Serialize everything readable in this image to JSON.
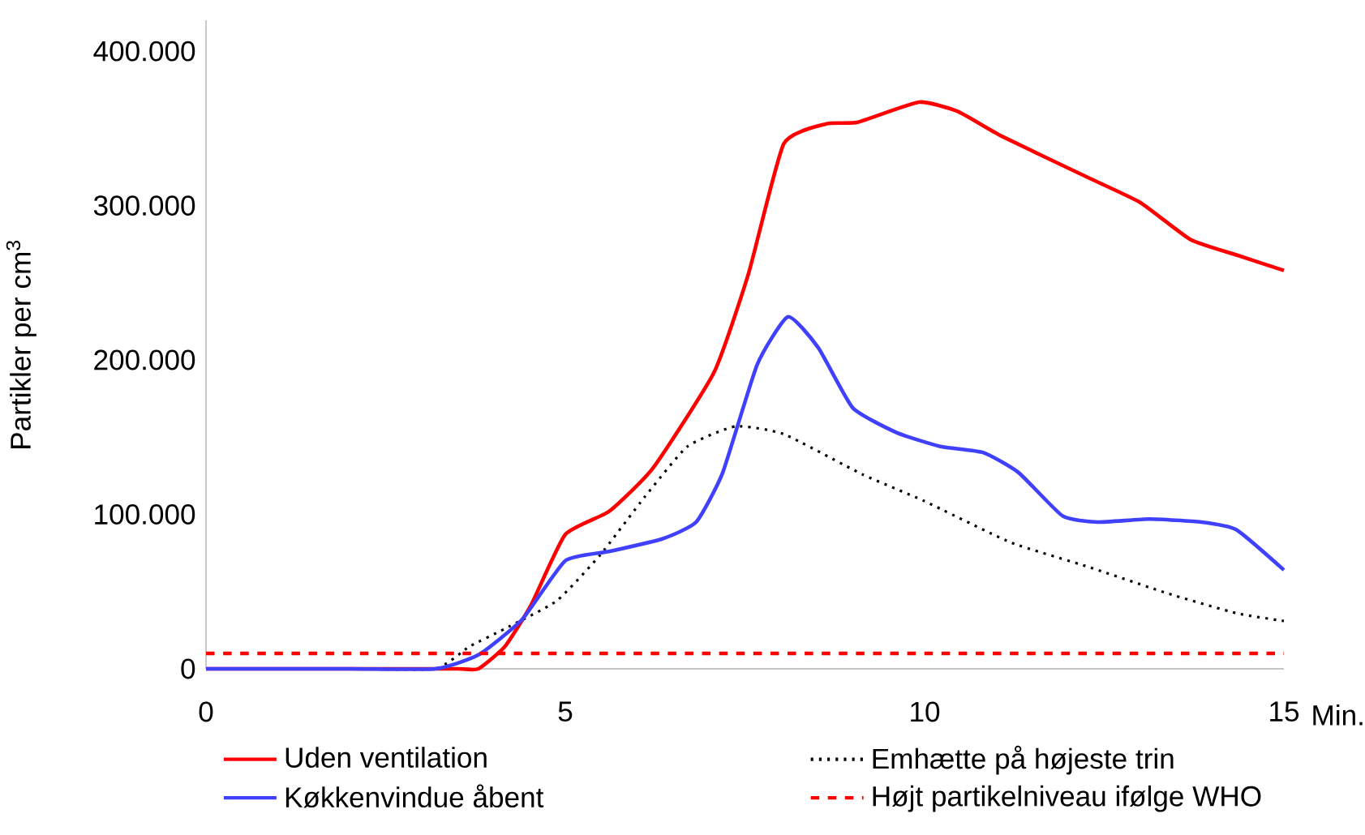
{
  "chart_data": {
    "type": "line",
    "xlabel": "Min.",
    "ylabel": "Partikler per cm$^{3}$",
    "xlim": [
      0,
      15
    ],
    "ylim": [
      0,
      420000
    ],
    "xticks": [
      0,
      5,
      10,
      15
    ],
    "yticks": [
      {
        "value": 0,
        "label": "0"
      },
      {
        "value": 100000,
        "label": "100.000"
      },
      {
        "value": 200000,
        "label": "200.000"
      },
      {
        "value": 300000,
        "label": "300.000"
      },
      {
        "value": 400000,
        "label": "400.000"
      }
    ],
    "grid": false,
    "legend": "bottom",
    "marker": "none",
    "series": [
      {
        "name": "Uden ventilation",
        "color": "#ff0000",
        "line_style": "solid",
        "x": [
          0,
          2,
          3.5,
          3.79,
          4.16,
          4.52,
          5.0,
          5.61,
          6.22,
          7.07,
          7.55,
          8.04,
          8.64,
          9.07,
          9.92,
          10.46,
          11.07,
          12.28,
          13.0,
          13.7,
          14.34,
          15
        ],
        "values": [
          0,
          0,
          0,
          0,
          14500,
          41000,
          87000,
          102000,
          130000,
          192000,
          256000,
          340000,
          353000,
          354000,
          367000,
          361000,
          345000,
          318000,
          302000,
          278000,
          268000,
          258000
        ]
      },
      {
        "name": "Emhætte på højeste trin",
        "color": "#000000",
        "line_style": "dotted",
        "x": [
          0,
          2,
          3.19,
          3.67,
          4.16,
          4.88,
          5.49,
          6.1,
          6.7,
          7.37,
          8.04,
          9.13,
          9.98,
          11.19,
          12.28,
          13.37,
          14.34,
          15
        ],
        "values": [
          0,
          0,
          0,
          14500,
          26000,
          44000,
          74000,
          111000,
          144000,
          157000,
          152000,
          126000,
          109000,
          82000,
          66000,
          49000,
          36000,
          31000
        ]
      },
      {
        "name": "Køkkenvindue åbent",
        "color": "#4040ff",
        "line_style": "solid",
        "x": [
          0,
          2,
          3.19,
          3.79,
          4.4,
          5.0,
          5.61,
          6.34,
          6.82,
          7.19,
          7.67,
          8.1,
          8.52,
          9.0,
          9.61,
          10.22,
          10.82,
          11.31,
          11.92,
          12.4,
          13.13,
          13.85,
          14.34,
          15
        ],
        "values": [
          0,
          0,
          0,
          9000,
          32000,
          70000,
          76000,
          84000,
          95000,
          127000,
          197000,
          228000,
          208000,
          169000,
          153000,
          144000,
          140000,
          127000,
          99000,
          95000,
          97000,
          95000,
          90000,
          64000
        ]
      }
    ],
    "ref_lines": [
      {
        "axis": "y",
        "value": 10000,
        "label": "Højt partikelniveau ifølge WHO",
        "color": "#ff0000",
        "line_style": "dashed"
      }
    ]
  }
}
